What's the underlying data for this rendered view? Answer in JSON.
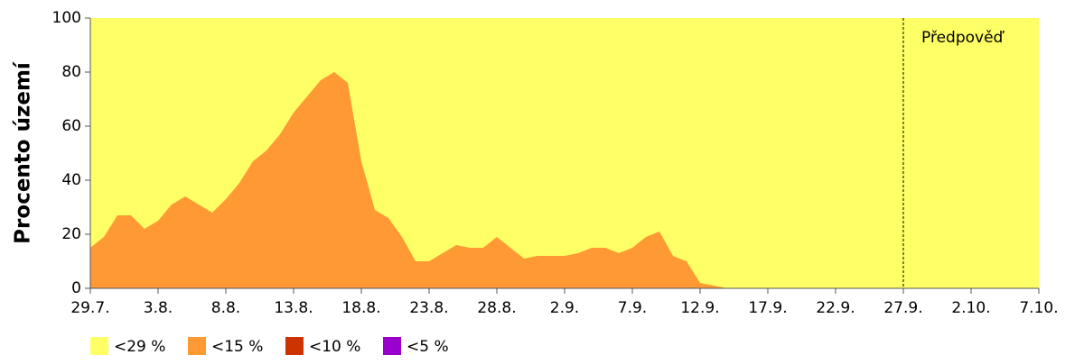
{
  "chart_data": {
    "type": "area",
    "y_label": "Procento území",
    "categories": [
      "29.7.",
      null,
      null,
      null,
      null,
      "3.8.",
      null,
      null,
      null,
      null,
      "8.8.",
      null,
      null,
      null,
      null,
      "13.8.",
      null,
      null,
      null,
      null,
      "18.8.",
      null,
      null,
      null,
      null,
      "23.8.",
      null,
      null,
      null,
      null,
      "28.8.",
      null,
      null,
      null,
      null,
      "2.9.",
      null,
      null,
      null,
      null,
      "7.9.",
      null,
      null,
      null,
      null,
      "12.9.",
      null,
      null,
      null,
      null,
      "17.9.",
      null,
      null,
      null,
      null,
      "22.9.",
      null,
      null,
      null,
      null,
      "27.9.",
      null,
      null,
      null,
      null,
      "2.10.",
      null,
      null,
      null,
      null,
      "7.10."
    ],
    "series": [
      {
        "name": "<29 %",
        "color": "#ffff66",
        "values": [
          100,
          100,
          100,
          100,
          100,
          100,
          100,
          100,
          100,
          100,
          100,
          100,
          100,
          100,
          100,
          100,
          100,
          100,
          100,
          100,
          100,
          100,
          100,
          100,
          100,
          100,
          100,
          100,
          100,
          100,
          100,
          100,
          100,
          100,
          100,
          100,
          100,
          100,
          100,
          100,
          100,
          100,
          100,
          100,
          100,
          100,
          100,
          100,
          100,
          100,
          100,
          100,
          100,
          100,
          100,
          100,
          100,
          100,
          100,
          100,
          100,
          100,
          100,
          100,
          100,
          100,
          100,
          100,
          100,
          100,
          100
        ]
      },
      {
        "name": "<15 %",
        "color": "#ff9933",
        "values": [
          15,
          19,
          27,
          27,
          22,
          25,
          31,
          34,
          31,
          28,
          33,
          39,
          47,
          51,
          57,
          65,
          71,
          77,
          80,
          76,
          47,
          29,
          26,
          19,
          10,
          10,
          13,
          16,
          15,
          15,
          19,
          15,
          11,
          12,
          12,
          12,
          13,
          15,
          15,
          13,
          15,
          19,
          21,
          12,
          10,
          2,
          1,
          0,
          0,
          0,
          0,
          0,
          0,
          0,
          0,
          0,
          0,
          0,
          0,
          0,
          0,
          0,
          0,
          0,
          0,
          0,
          0,
          0,
          0,
          0,
          0
        ]
      },
      {
        "name": "<10 %",
        "color": "#cc3300",
        "values": [
          0,
          0,
          0,
          0,
          0,
          0,
          0,
          0,
          0,
          0,
          0,
          0,
          0,
          0,
          0,
          0,
          0,
          0,
          0,
          0,
          0,
          0,
          0,
          0,
          0,
          0,
          0,
          0,
          0,
          0,
          0,
          0,
          0,
          0,
          0,
          0,
          0,
          0,
          0,
          0,
          0,
          0,
          0,
          0,
          0,
          0,
          0,
          0,
          0,
          0,
          0,
          0,
          0,
          0,
          0,
          0,
          0,
          0,
          0,
          0,
          0,
          0,
          0,
          0,
          0,
          0,
          0,
          0,
          0,
          0,
          0
        ]
      },
      {
        "name": "<5 %",
        "color": "#9900cc",
        "values": [
          0,
          0,
          0,
          0,
          0,
          0,
          0,
          0,
          0,
          0,
          0,
          0,
          0,
          0,
          0,
          0,
          0,
          0,
          0,
          0,
          0,
          0,
          0,
          0,
          0,
          0,
          0,
          0,
          0,
          0,
          0,
          0,
          0,
          0,
          0,
          0,
          0,
          0,
          0,
          0,
          0,
          0,
          0,
          0,
          0,
          0,
          0,
          0,
          0,
          0,
          0,
          0,
          0,
          0,
          0,
          0,
          0,
          0,
          0,
          0,
          0,
          0,
          0,
          0,
          0,
          0,
          0,
          0,
          0,
          0,
          0
        ]
      }
    ],
    "annotations": [
      {
        "text": "Předpověď",
        "x": "27.9."
      }
    ],
    "ylim": [
      0,
      100
    ],
    "yticks": [
      0,
      20,
      40,
      60,
      80,
      100
    ]
  }
}
